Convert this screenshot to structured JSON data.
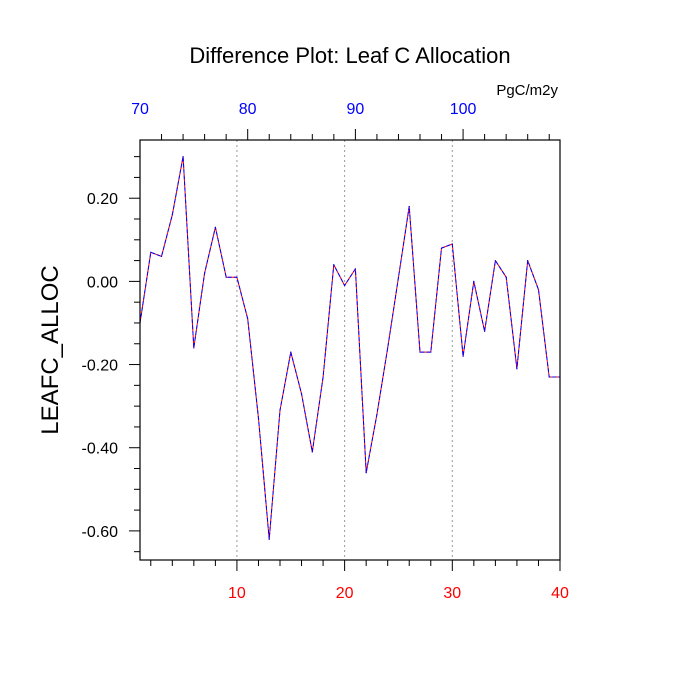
{
  "chart_data": {
    "type": "line",
    "title": "Difference Plot: Leaf C Allocation",
    "ylabel": "LEAFC_ALLOC",
    "xlabel": "",
    "units": "PgC/m2y",
    "xlim": [
      1,
      40
    ],
    "ylim": [
      -0.67,
      0.34
    ],
    "x_ticks": [
      10,
      20,
      30,
      40
    ],
    "x_tick_labels": [
      "10",
      "20",
      "30",
      "40"
    ],
    "x_tick_color": "#ff0000",
    "top_axis_ticks": [
      70,
      80,
      90,
      100
    ],
    "top_axis_labels": [
      "70",
      "80",
      "90",
      "100"
    ],
    "top_axis_color": "#0000ff",
    "top_axis_range": [
      70,
      109
    ],
    "y_ticks": [
      0.2,
      0.0,
      -0.2,
      -0.4,
      -0.6
    ],
    "y_tick_labels": [
      "0.20",
      "0.00",
      "-0.20",
      "-0.40",
      "-0.60"
    ],
    "grid": "vertical dotted at major x ticks",
    "series": [
      {
        "name": "LEAFC_ALLOC difference",
        "color_primary": "#ff0000",
        "color_overlay": "#0000ff",
        "x": [
          1,
          2,
          3,
          4,
          5,
          6,
          7,
          8,
          9,
          10,
          11,
          12,
          13,
          14,
          15,
          16,
          17,
          18,
          19,
          20,
          21,
          22,
          23,
          24,
          25,
          26,
          27,
          28,
          29,
          30,
          31,
          32,
          33,
          34,
          35,
          36,
          37,
          38,
          39,
          40
        ],
        "values": [
          -0.1,
          0.07,
          0.06,
          0.16,
          0.3,
          -0.16,
          0.02,
          0.13,
          0.01,
          0.01,
          -0.09,
          -0.33,
          -0.62,
          -0.31,
          -0.17,
          -0.27,
          -0.41,
          -0.23,
          0.04,
          -0.01,
          0.03,
          -0.46,
          -0.32,
          -0.16,
          0.01,
          0.18,
          -0.17,
          -0.17,
          0.08,
          0.09,
          -0.18,
          0.0,
          -0.12,
          0.05,
          0.01,
          -0.21,
          0.05,
          -0.02,
          -0.23,
          -0.23
        ]
      }
    ]
  }
}
